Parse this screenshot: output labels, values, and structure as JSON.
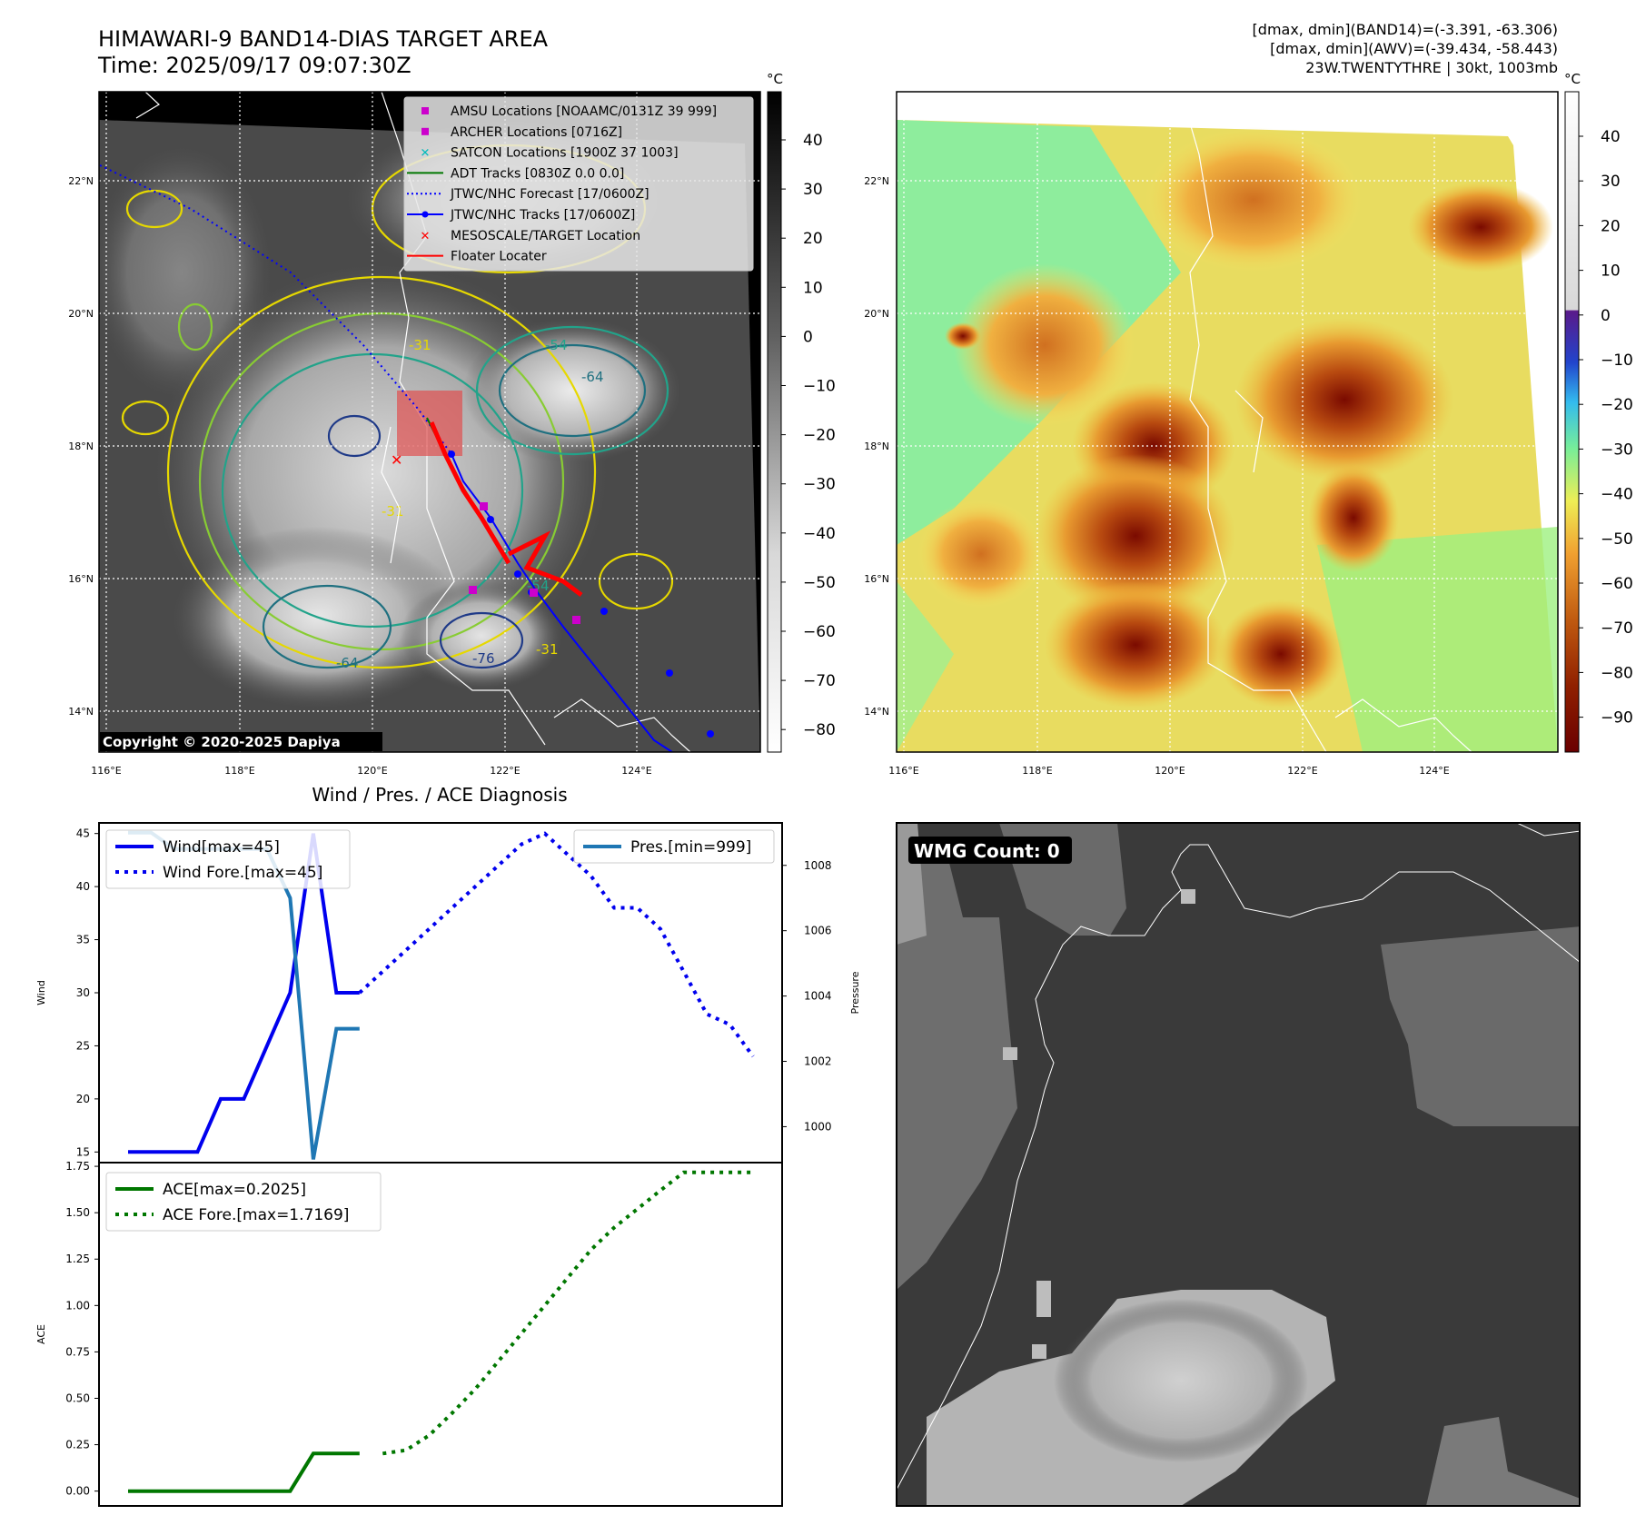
{
  "header": {
    "title_line1": "HIMAWARI-9 BAND14-DIAS TARGET AREA",
    "title_line2": "Time: 2025/09/17 09:07:30Z",
    "info_line1": "[dmax, dmin](BAND14)=(-3.391, -63.306)",
    "info_line2": "[dmax, dmin](AWV)=(-39.434, -58.443)",
    "info_line3": "23W.TWENTYTHRE | 30kt, 1003mb"
  },
  "map_axes": {
    "lon_ticks": [
      "116°E",
      "118°E",
      "120°E",
      "122°E",
      "124°E"
    ],
    "lat_ticks": [
      "22°N",
      "20°N",
      "18°N",
      "16°N",
      "14°N"
    ]
  },
  "left_map": {
    "copyright": "Copyright © 2020-2025 Dapiya",
    "colorbar_unit": "°C",
    "colorbar_ticks": [
      "40",
      "30",
      "20",
      "10",
      "0",
      "−10",
      "−20",
      "−30",
      "−40",
      "−50",
      "−60",
      "−70",
      "−80"
    ],
    "contour_labels": [
      "-54",
      "-64",
      "-31",
      "-31",
      "-64",
      "-76",
      "-54",
      "-31"
    ],
    "legend": [
      {
        "label": "AMSU Locations [NOAAMC/0131Z 39 999]",
        "marker": "square",
        "color": "#cc00cc"
      },
      {
        "label": "ARCHER Locations [0716Z]",
        "marker": "square",
        "color": "#cc00cc"
      },
      {
        "label": "SATCON Locations [1900Z 37 1003]",
        "marker": "x",
        "color": "#00bbbb"
      },
      {
        "label": "ADT Tracks [0830Z 0.0 0.0]",
        "marker": "line",
        "color": "#007700"
      },
      {
        "label": "JTWC/NHC Forecast [17/0600Z]",
        "marker": "dotted",
        "color": "#0000ff"
      },
      {
        "label": "JTWC/NHC Tracks [17/0600Z]",
        "marker": "line-dot",
        "color": "#0000ff"
      },
      {
        "label": "MESOSCALE/TARGET Location",
        "marker": "x",
        "color": "#ff0000"
      },
      {
        "label": "Floater Locater",
        "marker": "line",
        "color": "#ff0000"
      }
    ]
  },
  "right_map": {
    "colorbar_unit": "°C",
    "colorbar_ticks": [
      "40",
      "30",
      "20",
      "10",
      "0",
      "−10",
      "−20",
      "−30",
      "−40",
      "−50",
      "−60",
      "−70",
      "−80",
      "−90"
    ]
  },
  "wmg_panel": {
    "label": "WMG Count: 0"
  },
  "chart_data": [
    {
      "type": "line",
      "title": "Wind / Pres. / ACE Diagnosis",
      "ylabel": "Wind",
      "ylim": [
        14,
        46
      ],
      "yticks": [
        "45",
        "40",
        "35",
        "30",
        "25",
        "20",
        "15"
      ],
      "series": [
        {
          "name": "Wind[max=45]",
          "color": "#0000ee",
          "style": "solid",
          "x": [
            0,
            1,
            2,
            3,
            4,
            5,
            6,
            7,
            8,
            9,
            10
          ],
          "values": [
            15,
            15,
            15,
            15,
            20,
            20,
            25,
            30,
            45,
            30,
            30
          ]
        },
        {
          "name": "Wind Fore.[max=45]",
          "color": "#0000ee",
          "style": "dotted",
          "x": [
            10,
            11,
            12,
            13,
            14,
            15,
            16,
            17,
            18,
            19,
            20,
            21,
            22,
            23,
            24,
            25,
            26,
            27
          ],
          "values": [
            30,
            32,
            34,
            36,
            38,
            40,
            42,
            44,
            45,
            43,
            41,
            38,
            38,
            36,
            32,
            28,
            27,
            24
          ]
        },
        {
          "name": "Pres.[min=999]",
          "color": "#1f77b4",
          "style": "solid",
          "axis": "right",
          "x": [
            0,
            1,
            2,
            3,
            4,
            5,
            6,
            7,
            8,
            9,
            10
          ],
          "values": [
            1009,
            1009,
            1008.5,
            1008.5,
            1008.5,
            1008.5,
            1008.5,
            1007,
            999,
            1003,
            1003
          ]
        }
      ],
      "y2label": "Pressure",
      "y2lim": [
        998.9,
        1009.3
      ],
      "y2ticks": [
        "1008",
        "1006",
        "1004",
        "1002",
        "1000"
      ]
    },
    {
      "type": "line",
      "ylabel": "ACE",
      "ylim": [
        -0.08,
        1.77
      ],
      "yticks": [
        "1.75",
        "1.50",
        "1.25",
        "1.00",
        "0.75",
        "0.50",
        "0.25",
        "0.00"
      ],
      "series": [
        {
          "name": "ACE[max=0.2025]",
          "color": "#007700",
          "style": "solid",
          "x": [
            0,
            1,
            2,
            3,
            4,
            5,
            6,
            7,
            8,
            9,
            10
          ],
          "values": [
            0,
            0,
            0,
            0,
            0,
            0,
            0,
            0,
            0.2025,
            0.2025,
            0.2025
          ]
        },
        {
          "name": "ACE Fore.[max=1.7169]",
          "color": "#007700",
          "style": "dotted",
          "x": [
            11,
            12,
            13,
            14,
            15,
            16,
            17,
            18,
            19,
            20,
            21,
            22,
            23,
            24,
            25,
            26,
            27
          ],
          "values": [
            0.2025,
            0.22,
            0.3,
            0.42,
            0.55,
            0.7,
            0.85,
            1.0,
            1.15,
            1.3,
            1.42,
            1.52,
            1.62,
            1.7169,
            1.7169,
            1.7169,
            1.7169
          ]
        }
      ]
    }
  ]
}
